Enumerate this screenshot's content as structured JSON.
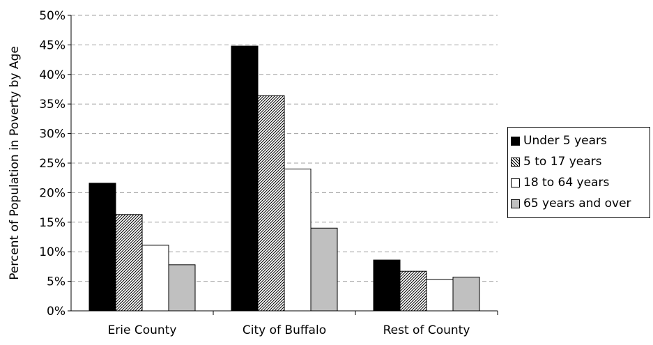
{
  "chart_data": {
    "type": "bar",
    "ylabel": "Percent of Population in Poverty by Age",
    "xlabel": "",
    "categories": [
      "Erie County",
      "City of Buffalo",
      "Rest of County"
    ],
    "ylim": [
      0,
      50
    ],
    "yticks": [
      "0%",
      "5%",
      "10%",
      "15%",
      "20%",
      "25%",
      "30%",
      "35%",
      "40%",
      "45%",
      "50%"
    ],
    "grid": true,
    "legend_position": "right",
    "series": [
      {
        "name": "Under 5 years",
        "values": [
          21.6,
          44.8,
          8.6
        ],
        "fill": "#000000"
      },
      {
        "name": "5 to 17 years",
        "values": [
          16.3,
          36.4,
          6.7
        ],
        "fill": "hatch"
      },
      {
        "name": "18 to 64 years",
        "values": [
          11.1,
          24.0,
          5.3
        ],
        "fill": "#ffffff"
      },
      {
        "name": "65 years and over",
        "values": [
          7.8,
          14.0,
          5.7
        ],
        "fill": "#c0c0c0"
      }
    ]
  }
}
